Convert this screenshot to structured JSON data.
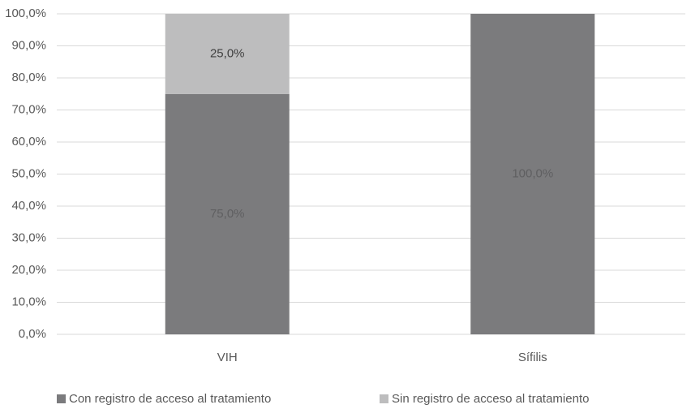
{
  "chart_data": {
    "type": "stacked_bar",
    "categories": [
      "VIH",
      "Sífilis"
    ],
    "series": [
      {
        "name": "Con registro de acceso al tratamiento",
        "color": "#7b7b7d",
        "values": [
          75,
          100
        ],
        "value_labels": [
          "75,0%",
          "100,0%"
        ]
      },
      {
        "name": "Sin registro de acceso al tratamiento",
        "color": "#bdbdbe",
        "values": [
          25,
          0
        ],
        "value_labels": [
          "25,0%",
          null
        ]
      }
    ],
    "ylim": [
      0,
      100
    ],
    "yticks": [
      {
        "value": 0,
        "label": "0,0%"
      },
      {
        "value": 10,
        "label": "10,0%"
      },
      {
        "value": 20,
        "label": "20,0%"
      },
      {
        "value": 30,
        "label": "30,0%"
      },
      {
        "value": 40,
        "label": "40,0%"
      },
      {
        "value": 50,
        "label": "50,0%"
      },
      {
        "value": 60,
        "label": "60,0%"
      },
      {
        "value": 70,
        "label": "70,0%"
      },
      {
        "value": 80,
        "label": "80,0%"
      },
      {
        "value": 90,
        "label": "90,0%"
      },
      {
        "value": 100,
        "label": "100,0%"
      }
    ],
    "grid": true,
    "legend": "bottom"
  }
}
